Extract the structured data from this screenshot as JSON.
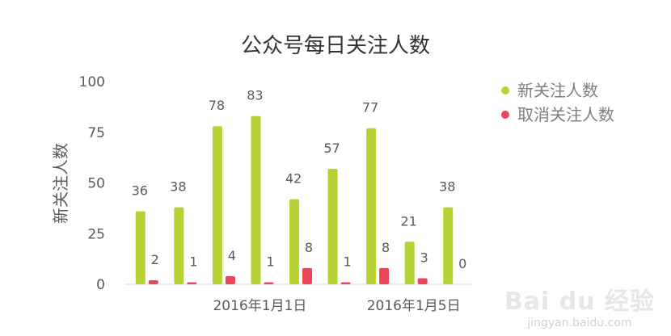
{
  "chart_data": {
    "type": "bar",
    "title": "公众号每日关注人数",
    "ylabel": "新关注人数",
    "ylim": [
      0,
      100
    ],
    "yticks": [
      0,
      25,
      50,
      75,
      100
    ],
    "categories": [
      "",
      "",
      "",
      "2016年1月1日",
      "",
      "",
      "",
      "2016年1月5日",
      ""
    ],
    "series": [
      {
        "name": "新关注人数",
        "color": "#b5d334",
        "values": [
          36,
          38,
          78,
          83,
          42,
          57,
          77,
          21,
          38
        ]
      },
      {
        "name": "取消关注人数",
        "color": "#e8465a",
        "values": [
          2,
          1,
          4,
          1,
          8,
          1,
          8,
          3,
          0
        ]
      }
    ],
    "legend": "right",
    "grid": false
  },
  "watermark": {
    "logo": "Bai du 经验",
    "url": "jingyan.baidu.com"
  }
}
